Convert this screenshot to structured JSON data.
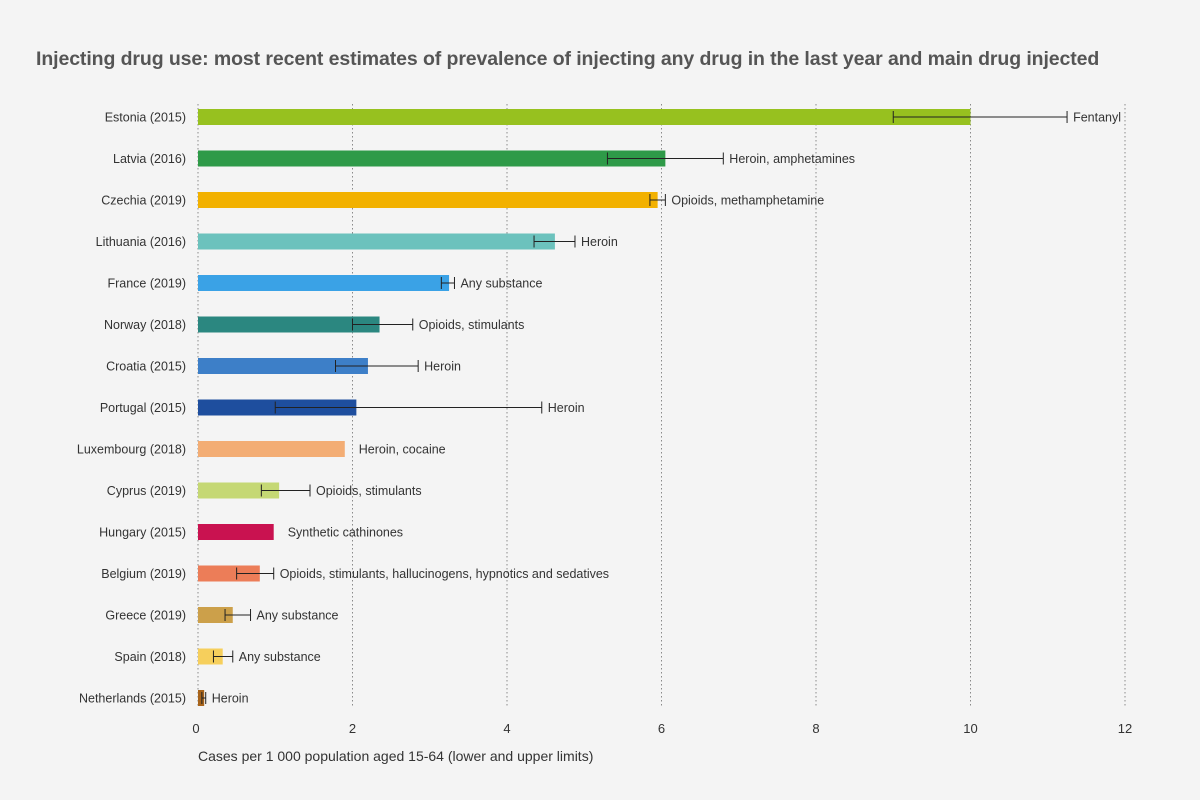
{
  "chart_data": {
    "type": "bar",
    "orientation": "horizontal",
    "title": "Injecting drug use: most recent estimates of prevalence of injecting any drug in the last year and main drug injected",
    "xlabel": "Cases per 1 000 population aged 15-64 (lower and upper limits)",
    "ylabel": "",
    "xlim": [
      0,
      12
    ],
    "xticks": [
      0,
      2,
      4,
      6,
      8,
      10,
      12
    ],
    "grid": "vertical dotted",
    "categories": [
      "Estonia (2015)",
      "Latvia (2016)",
      "Czechia (2019)",
      "Lithuania (2016)",
      "France (2019)",
      "Norway (2018)",
      "Croatia (2015)",
      "Portugal (2015)",
      "Luxembourg (2018)",
      "Cyprus (2019)",
      "Hungary (2015)",
      "Belgium (2019)",
      "Greece (2019)",
      "Spain (2018)",
      "Netherlands (2015)"
    ],
    "values": [
      10.0,
      6.05,
      5.95,
      4.62,
      3.25,
      2.35,
      2.2,
      2.05,
      1.9,
      1.05,
      0.98,
      0.8,
      0.45,
      0.32,
      0.08
    ],
    "lower": [
      9.0,
      5.3,
      5.85,
      4.35,
      3.15,
      2.0,
      1.78,
      1.0,
      null,
      0.82,
      null,
      0.5,
      0.35,
      0.2,
      0.05
    ],
    "upper": [
      11.25,
      6.8,
      6.05,
      4.88,
      3.32,
      2.78,
      2.85,
      4.45,
      null,
      1.45,
      null,
      0.98,
      0.68,
      0.45,
      0.1
    ],
    "drug_labels": [
      "Fentanyl",
      "Heroin, amphetamines",
      "Opioids, methamphetamine",
      "Heroin",
      "Any substance",
      "Opioids, stimulants",
      "Heroin",
      "Heroin",
      "Heroin, cocaine",
      "Opioids, stimulants",
      "Synthetic cathinones",
      "Opioids, stimulants, hallucinogens, hypnotics and sedatives",
      "Any substance",
      "Any substance",
      "Heroin"
    ],
    "colors": [
      "#97c11f",
      "#2e9a48",
      "#f2b100",
      "#6cc2bd",
      "#3aa2e6",
      "#2b8780",
      "#3d7fc8",
      "#1e4e9e",
      "#f3ad74",
      "#c5d874",
      "#c91250",
      "#ec7d58",
      "#cca04a",
      "#f6cf5c",
      "#a8641b"
    ]
  }
}
